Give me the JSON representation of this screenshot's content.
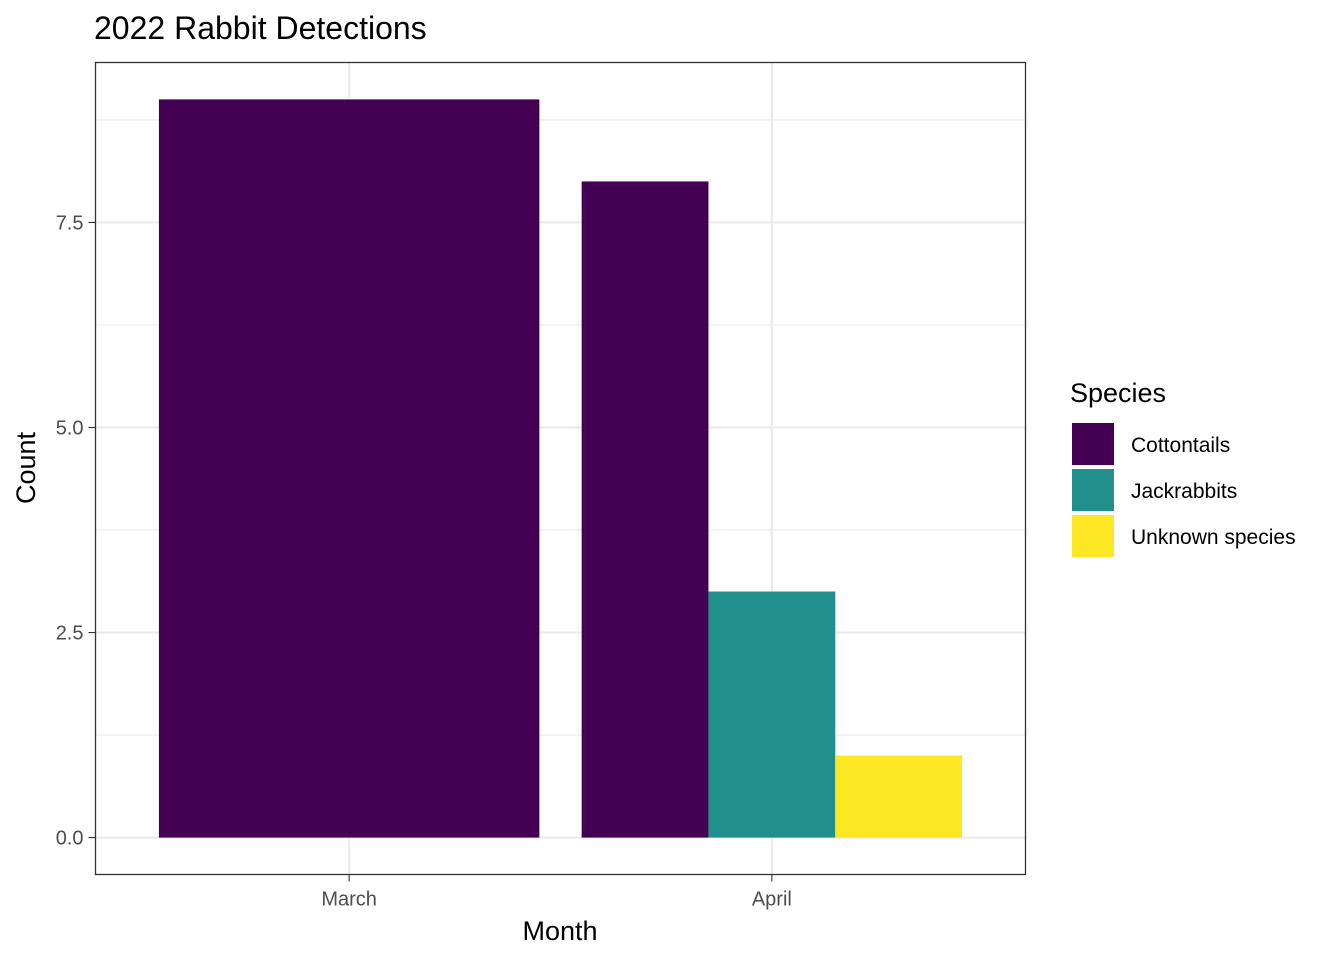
{
  "chart_data": {
    "type": "bar",
    "title": "2022 Rabbit Detections",
    "xlabel": "Month",
    "ylabel": "Count",
    "categories": [
      "March",
      "April"
    ],
    "series": [
      {
        "name": "Cottontails",
        "color": "#440154",
        "values": [
          9,
          8
        ]
      },
      {
        "name": "Jackrabbits",
        "color": "#21908C",
        "values": [
          null,
          3
        ]
      },
      {
        "name": "Unknown species",
        "color": "#FDE725",
        "values": [
          null,
          1
        ]
      }
    ],
    "ylim": [
      -0.45,
      9.45
    ],
    "yticks": [
      0.0,
      2.5,
      5.0,
      7.5
    ],
    "ytick_labels": [
      "0.0",
      "2.5",
      "5.0",
      "7.5"
    ],
    "grid": true,
    "legend": {
      "title": "Species",
      "placement": "right"
    }
  }
}
